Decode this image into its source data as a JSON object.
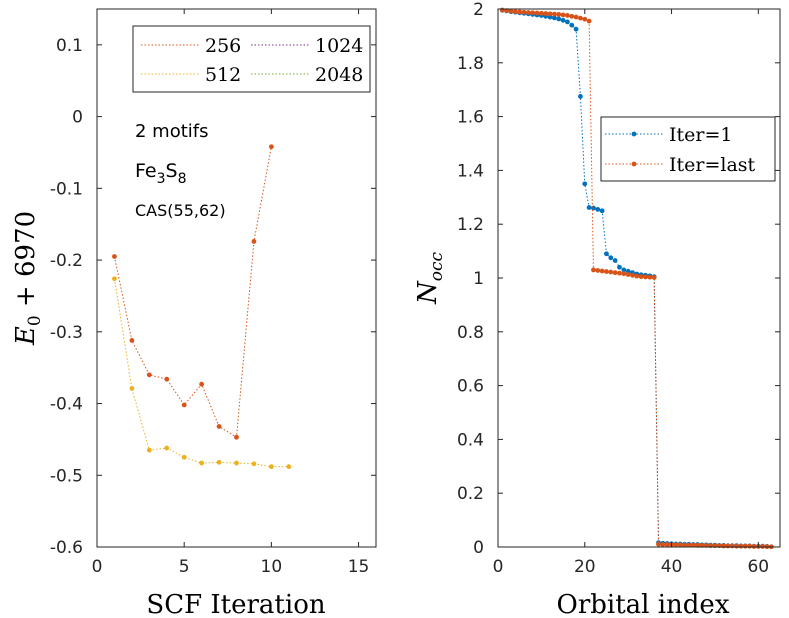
{
  "colors": {
    "c256": "#d95319",
    "c512": "#edb120",
    "c1024": "#7e2f8e",
    "c2048": "#77ac30",
    "iter1": "#0072bd",
    "iterlast": "#d95319",
    "axis": "#262626"
  },
  "chart_data": [
    {
      "type": "line",
      "xlabel": "SCF Iteration",
      "ylabel_main": "E",
      "ylabel_sub": "0",
      "ylabel_rest": " + 6970",
      "xlim": [
        0,
        16
      ],
      "ylim": [
        -0.6,
        0.15
      ],
      "xticks": [
        0,
        5,
        10,
        15
      ],
      "xtick_labels": [
        "0",
        "5",
        "10",
        "15"
      ],
      "yticks": [
        0.1,
        0,
        -0.1,
        -0.2,
        -0.3,
        -0.4,
        -0.5,
        -0.6
      ],
      "ytick_labels": [
        "0.1",
        "0",
        "-0.1",
        "-0.2",
        "-0.3",
        "-0.4",
        "-0.5",
        "-0.6"
      ],
      "legend": [
        "256",
        "1024",
        "512",
        "2048"
      ],
      "annotations": {
        "motifs": "2 motifs",
        "formula_fe": "Fe",
        "formula_fe_sub": "3",
        "formula_s": "S",
        "formula_s_sub": "8",
        "cas": "CAS(55,62)"
      },
      "series": [
        {
          "name": "256",
          "color_key": "c256",
          "x": [
            1,
            2,
            3,
            4,
            5,
            6,
            7,
            8,
            9,
            10
          ],
          "y": [
            -0.195,
            -0.312,
            -0.36,
            -0.366,
            -0.402,
            -0.373,
            -0.432,
            -0.447,
            -0.174,
            -0.042
          ]
        },
        {
          "name": "512",
          "color_key": "c512",
          "x": [
            1,
            2,
            3,
            4,
            5,
            6,
            7,
            8,
            9,
            10,
            11
          ],
          "y": [
            -0.226,
            -0.379,
            -0.465,
            -0.462,
            -0.475,
            -0.483,
            -0.482,
            -0.483,
            -0.484,
            -0.488,
            -0.488
          ]
        },
        {
          "name": "1024",
          "color_key": "c1024",
          "x": [],
          "y": []
        },
        {
          "name": "2048",
          "color_key": "c2048",
          "x": [],
          "y": []
        }
      ]
    },
    {
      "type": "line",
      "xlabel": "Orbital index",
      "ylabel_main": "N",
      "ylabel_sub": "occ",
      "xlim": [
        0,
        65
      ],
      "ylim": [
        0,
        2
      ],
      "xticks": [
        0,
        20,
        40,
        60
      ],
      "xtick_labels": [
        "0",
        "20",
        "40",
        "60"
      ],
      "yticks": [
        0,
        0.2,
        0.4,
        0.6,
        0.8,
        1,
        1.2,
        1.4,
        1.6,
        1.8,
        2
      ],
      "ytick_labels": [
        "0",
        "0.2",
        "0.4",
        "0.6",
        "0.8",
        "1",
        "1.2",
        "1.4",
        "1.6",
        "1.8",
        "2"
      ],
      "legend": [
        "Iter=1",
        "Iter=last"
      ],
      "series": [
        {
          "name": "Iter=1",
          "color_key": "iter1",
          "x": [
            1,
            2,
            3,
            4,
            5,
            6,
            7,
            8,
            9,
            10,
            11,
            12,
            13,
            14,
            15,
            16,
            17,
            18,
            19,
            20,
            21,
            22,
            23,
            24,
            25,
            26,
            27,
            28,
            29,
            30,
            31,
            32,
            33,
            34,
            35,
            36,
            37,
            38,
            39,
            40,
            41,
            42,
            43,
            44,
            45,
            46,
            47,
            48,
            49,
            50,
            51,
            52,
            53,
            54,
            55,
            56,
            57,
            58,
            59,
            60,
            61,
            62,
            63
          ],
          "y": [
            1.995,
            1.993,
            1.99,
            1.988,
            1.986,
            1.984,
            1.982,
            1.98,
            1.978,
            1.976,
            1.973,
            1.97,
            1.967,
            1.963,
            1.958,
            1.952,
            1.94,
            1.925,
            1.675,
            1.35,
            1.262,
            1.26,
            1.255,
            1.25,
            1.09,
            1.075,
            1.065,
            1.04,
            1.03,
            1.025,
            1.02,
            1.015,
            1.012,
            1.01,
            1.008,
            1.005,
            0.016,
            0.014,
            0.013,
            0.012,
            0.011,
            0.011,
            0.01,
            0.01,
            0.009,
            0.009,
            0.008,
            0.008,
            0.007,
            0.007,
            0.006,
            0.006,
            0.005,
            0.005,
            0.005,
            0.004,
            0.004,
            0.004,
            0.003,
            0.003,
            0.003,
            0.002,
            0.001
          ]
        },
        {
          "name": "Iter=last",
          "color_key": "iterlast",
          "x": [
            1,
            2,
            3,
            4,
            5,
            6,
            7,
            8,
            9,
            10,
            11,
            12,
            13,
            14,
            15,
            16,
            17,
            18,
            19,
            20,
            21,
            22,
            23,
            24,
            25,
            26,
            27,
            28,
            29,
            30,
            31,
            32,
            33,
            34,
            35,
            36,
            37,
            38,
            39,
            40,
            41,
            42,
            43,
            44,
            45,
            46,
            47,
            48,
            49,
            50,
            51,
            52,
            53,
            54,
            55,
            56,
            57,
            58,
            59,
            60,
            61,
            62,
            63
          ],
          "y": [
            1.996,
            1.994,
            1.992,
            1.99,
            1.989,
            1.988,
            1.987,
            1.986,
            1.985,
            1.984,
            1.983,
            1.982,
            1.981,
            1.98,
            1.978,
            1.976,
            1.973,
            1.97,
            1.966,
            1.962,
            1.955,
            1.03,
            1.028,
            1.026,
            1.024,
            1.022,
            1.02,
            1.018,
            1.016,
            1.013,
            1.01,
            1.007,
            1.005,
            1.004,
            1.003,
            1.002,
            0.01,
            0.009,
            0.009,
            0.008,
            0.008,
            0.008,
            0.007,
            0.007,
            0.007,
            0.006,
            0.006,
            0.006,
            0.005,
            0.005,
            0.005,
            0.004,
            0.004,
            0.004,
            0.003,
            0.003,
            0.003,
            0.003,
            0.002,
            0.002,
            0.002,
            0.001,
            0.001
          ]
        }
      ]
    }
  ]
}
